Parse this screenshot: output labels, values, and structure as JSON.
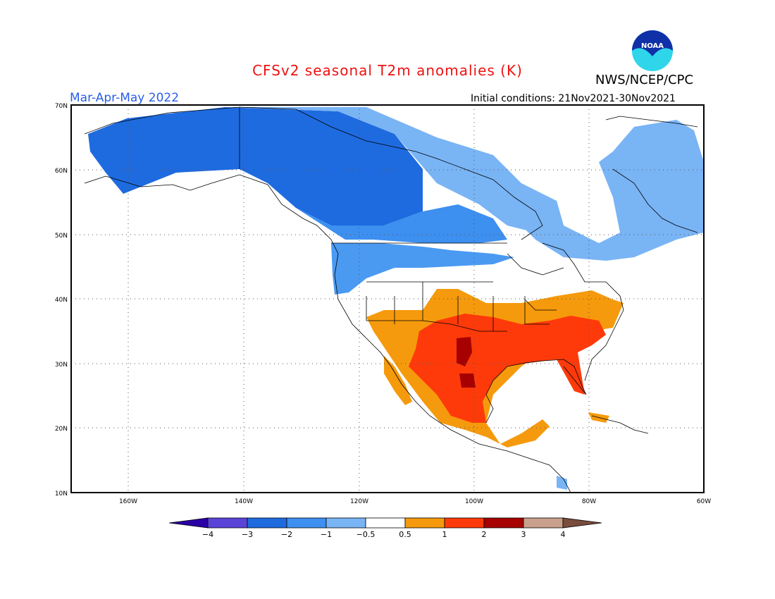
{
  "header": {
    "title": "CFSv2 seasonal T2m anomalies (K)",
    "agency": "NWS/NCEP/CPC",
    "logo_text": "NOAA",
    "season": "Mar-Apr-May 2022",
    "initial_conditions": "Initial conditions: 21Nov2021-30Nov2021"
  },
  "map": {
    "projection": "cylindrical equidistant",
    "lon_range": [
      "170W",
      "60W"
    ],
    "lat_range": [
      "10N",
      "70N"
    ],
    "lat_labels": [
      "70N",
      "60N",
      "50N",
      "40N",
      "30N",
      "20N",
      "10N"
    ],
    "lon_labels": [
      "160W",
      "140W",
      "120W",
      "100W",
      "80W",
      "60W"
    ],
    "gridlines": "dotted",
    "regions": [
      {
        "name": "Alaska & NW Canada",
        "anomaly_class": "-3 to -2",
        "color": "#1e6be0"
      },
      {
        "name": "Northern Canada",
        "anomaly_class": "-2 to -1",
        "color": "#3d8ff0"
      },
      {
        "name": "Eastern Canada / Quebec",
        "anomaly_class": "-1 to -0.5",
        "color": "#79b4f5"
      },
      {
        "name": "Pacific Northwest & northern Rockies",
        "anomaly_class": "-2 to -0.5",
        "color": "#4a9af2"
      },
      {
        "name": "Southwest & Southern Plains",
        "anomaly_class": "1 to 2",
        "color": "#ff3a0a"
      },
      {
        "name": "Texas core",
        "anomaly_class": "2 to 3",
        "color": "#a60000"
      },
      {
        "name": "Southeast",
        "anomaly_class": "1 to 2",
        "color": "#ff3a0a"
      },
      {
        "name": "Central & Mid-Atlantic",
        "anomaly_class": "0.5 to 1",
        "color": "#f59a0c"
      },
      {
        "name": "Mexico",
        "anomaly_class": "0.5 to 2",
        "color": "#ff3a0a"
      }
    ]
  },
  "colorbar": {
    "labels": [
      "−4",
      "−3",
      "−2",
      "−1",
      "−0.5",
      "0.5",
      "1",
      "2",
      "3",
      "4"
    ],
    "colors": [
      "#2a00a6",
      "#5a44d8",
      "#1e6be0",
      "#3d8ff0",
      "#79b4f5",
      "#ffffff",
      "#f59a0c",
      "#ff3a0a",
      "#a60000",
      "#c9a08c",
      "#7a4c3c"
    ]
  }
}
